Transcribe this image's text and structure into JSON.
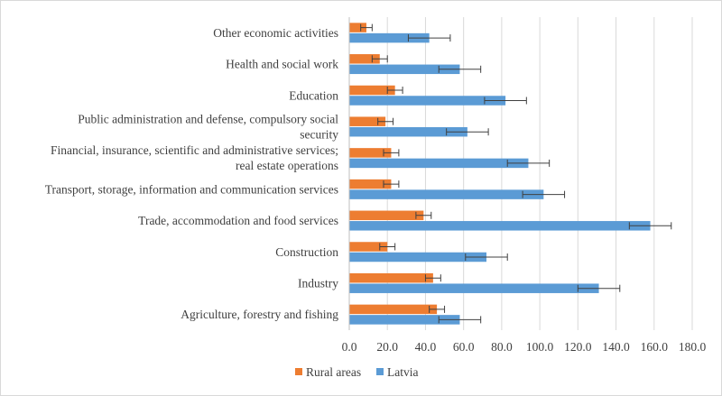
{
  "chart_data": {
    "type": "bar",
    "orientation": "horizontal",
    "categories": [
      "Agriculture, forestry and fishing",
      "Industry",
      "Construction",
      "Trade, accommodation and food services",
      "Transport, storage, information and communication services",
      "Financial, insurance, scientific and administrative services; real estate operations",
      "Public administration and defense, compulsory social security",
      "Education",
      "Health and social work",
      "Other economic activities"
    ],
    "category_label_lines": [
      [
        "Agriculture, forestry and fishing"
      ],
      [
        "Industry"
      ],
      [
        "Construction"
      ],
      [
        "Trade, accommodation and food services"
      ],
      [
        "Transport, storage, information and communication services"
      ],
      [
        "Financial, insurance, scientific and administrative services;",
        "real estate operations"
      ],
      [
        "Public administration and defense, compulsory social",
        "security"
      ],
      [
        "Education"
      ],
      [
        "Health and social work"
      ],
      [
        "Other economic activities"
      ]
    ],
    "series": [
      {
        "name": "Rural areas",
        "color": "#ED7D31",
        "values": [
          46,
          44,
          20,
          39,
          22,
          22,
          19,
          24,
          16,
          9
        ],
        "error": [
          4,
          4,
          4,
          4,
          4,
          4,
          4,
          4,
          4,
          3
        ]
      },
      {
        "name": "Latvia",
        "color": "#5B9BD5",
        "values": [
          58,
          131,
          72,
          158,
          102,
          94,
          62,
          82,
          58,
          42
        ],
        "error": [
          11,
          11,
          11,
          11,
          11,
          11,
          11,
          11,
          11,
          11
        ]
      }
    ],
    "xlim": [
      0,
      180
    ],
    "x_ticks": [
      "0.0",
      "20.0",
      "40.0",
      "60.0",
      "80.0",
      "100.0",
      "120.0",
      "140.0",
      "160.0",
      "180.0"
    ],
    "grid": true,
    "legend_position": "bottom-center"
  }
}
